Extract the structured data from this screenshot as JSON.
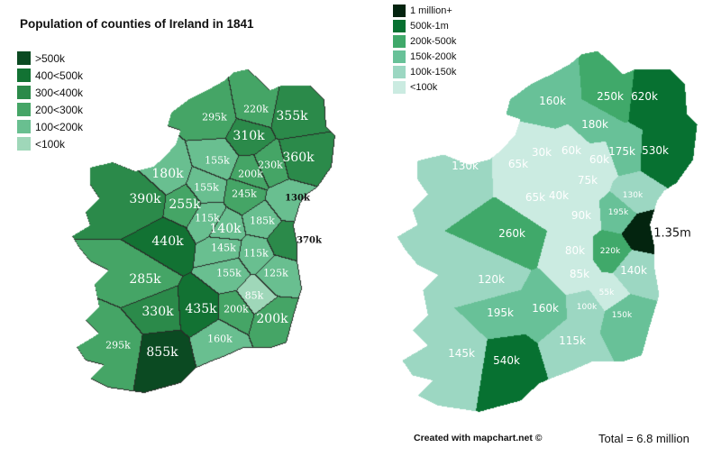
{
  "left_map": {
    "title": "Population of counties of Ireland in 1841",
    "legend": [
      {
        "label": ">500k",
        "color": "#0b4a22"
      },
      {
        "label": "400<500k",
        "color": "#127233"
      },
      {
        "label": "300<400k",
        "color": "#2b8a4a"
      },
      {
        "label": "200<300k",
        "color": "#45a566"
      },
      {
        "label": "100<200k",
        "color": "#69bf90"
      },
      {
        "label": "<100k",
        "color": "#9fd7b9"
      }
    ],
    "counties": [
      {
        "label": "295k",
        "tier": 3
      },
      {
        "label": "220k",
        "tier": 3
      },
      {
        "label": "355k",
        "tier": 2
      },
      {
        "label": "310k",
        "tier": 2
      },
      {
        "label": "360k",
        "tier": 2
      },
      {
        "label": "155k",
        "tier": 4
      },
      {
        "label": "230k",
        "tier": 3
      },
      {
        "label": "200k",
        "tier": 3
      },
      {
        "label": "180k",
        "tier": 4
      },
      {
        "label": "155k",
        "tier": 4
      },
      {
        "label": "245k",
        "tier": 3
      },
      {
        "label": "390k",
        "tier": 2
      },
      {
        "label": "255k",
        "tier": 3
      },
      {
        "label": "130k",
        "tier": 4
      },
      {
        "label": "115k",
        "tier": 4
      },
      {
        "label": "140k",
        "tier": 4
      },
      {
        "label": "185k",
        "tier": 4
      },
      {
        "label": "440k",
        "tier": 1
      },
      {
        "label": "370k",
        "tier": 2
      },
      {
        "label": "145k",
        "tier": 4
      },
      {
        "label": "115k",
        "tier": 4
      },
      {
        "label": "285k",
        "tier": 3
      },
      {
        "label": "155k",
        "tier": 4
      },
      {
        "label": "125k",
        "tier": 4
      },
      {
        "label": "85k",
        "tier": 5
      },
      {
        "label": "330k",
        "tier": 2
      },
      {
        "label": "435k",
        "tier": 1
      },
      {
        "label": "200k",
        "tier": 3
      },
      {
        "label": "200k",
        "tier": 3
      },
      {
        "label": "160k",
        "tier": 4
      },
      {
        "label": "295k",
        "tier": 3
      },
      {
        "label": "855k",
        "tier": 0
      }
    ]
  },
  "right_map": {
    "legend": [
      {
        "label": "1 million+",
        "color": "#03240f"
      },
      {
        "label": "500k-1m",
        "color": "#077131"
      },
      {
        "label": "200k-500k",
        "color": "#40a96a"
      },
      {
        "label": "150k-200k",
        "color": "#68c198"
      },
      {
        "label": "100k-150k",
        "color": "#9cd7c2"
      },
      {
        "label": "<100k",
        "color": "#cbebe1"
      }
    ],
    "counties": [
      {
        "label": "160k",
        "tier": 3
      },
      {
        "label": "250k",
        "tier": 2
      },
      {
        "label": "620k",
        "tier": 1
      },
      {
        "label": "180k",
        "tier": 3
      },
      {
        "label": "30k",
        "tier": 5
      },
      {
        "label": "60k",
        "tier": 5
      },
      {
        "label": "175k",
        "tier": 3
      },
      {
        "label": "530k",
        "tier": 1
      },
      {
        "label": "130k",
        "tier": 4
      },
      {
        "label": "65k",
        "tier": 5
      },
      {
        "label": "60k",
        "tier": 5
      },
      {
        "label": "75k",
        "tier": 5
      },
      {
        "label": "65k",
        "tier": 5
      },
      {
        "label": "40k",
        "tier": 5
      },
      {
        "label": "130k",
        "tier": 4
      },
      {
        "label": "90k",
        "tier": 5
      },
      {
        "label": "195k",
        "tier": 3
      },
      {
        "label": "1.35m",
        "tier": 0
      },
      {
        "label": "260k",
        "tier": 2
      },
      {
        "label": "80k",
        "tier": 5
      },
      {
        "label": "220k",
        "tier": 2
      },
      {
        "label": "140k",
        "tier": 4
      },
      {
        "label": "120k",
        "tier": 4
      },
      {
        "label": "85k",
        "tier": 5
      },
      {
        "label": "55k",
        "tier": 5
      },
      {
        "label": "195k",
        "tier": 3
      },
      {
        "label": "160k",
        "tier": 3
      },
      {
        "label": "100k",
        "tier": 4
      },
      {
        "label": "150k",
        "tier": 3
      },
      {
        "label": "115k",
        "tier": 4
      },
      {
        "label": "145k",
        "tier": 4
      },
      {
        "label": "540k",
        "tier": 1
      }
    ],
    "credit": "Created with mapchart.net ©",
    "total": "Total = 6.8 million"
  }
}
